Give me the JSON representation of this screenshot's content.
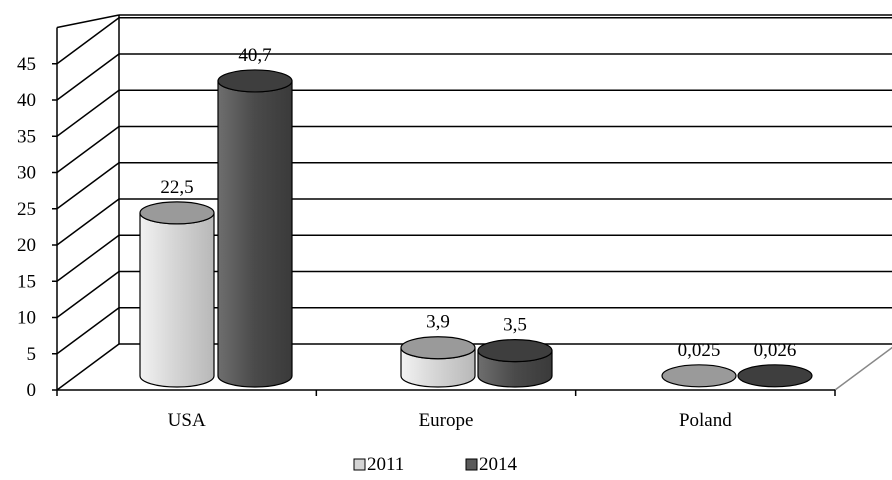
{
  "chart_data": {
    "type": "bar",
    "style": "3d-cylinder",
    "categories": [
      "USA",
      "Europe",
      "Poland"
    ],
    "series": [
      {
        "name": "2011",
        "values": [
          22.5,
          3.9,
          0.025
        ],
        "labels": [
          "22,5",
          "3,9",
          "0,025"
        ],
        "color": "#d4d4d4"
      },
      {
        "name": "2014",
        "values": [
          40.7,
          3.5,
          0.026
        ],
        "labels": [
          "40,7",
          "3,5",
          "0,026"
        ],
        "color": "#5a5a5a"
      }
    ],
    "yticks": [
      "0",
      "5",
      "10",
      "15",
      "20",
      "25",
      "30",
      "35",
      "40",
      "45"
    ],
    "ylim": [
      0,
      50
    ],
    "grid": true,
    "legend": "bottom"
  }
}
